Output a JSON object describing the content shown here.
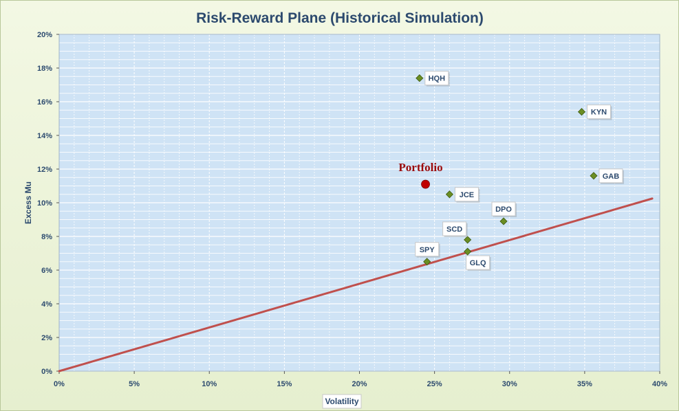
{
  "chart_data": {
    "type": "scatter",
    "title": "Risk-Reward Plane (Historical Simulation)",
    "xlabel": "Volatility",
    "ylabel": "Excess Mu",
    "xlim": [
      0,
      0.4
    ],
    "ylim": [
      0,
      0.2
    ],
    "x_ticks": [
      "0%",
      "5%",
      "10%",
      "15%",
      "20%",
      "25%",
      "30%",
      "35%",
      "40%"
    ],
    "y_ticks": [
      "0%",
      "2%",
      "4%",
      "6%",
      "8%",
      "10%",
      "12%",
      "14%",
      "16%",
      "18%",
      "20%"
    ],
    "grid": true,
    "points": [
      {
        "label": "HQH",
        "x": 0.24,
        "y": 0.174,
        "label_pos": "right"
      },
      {
        "label": "KYN",
        "x": 0.348,
        "y": 0.154,
        "label_pos": "right"
      },
      {
        "label": "GAB",
        "x": 0.356,
        "y": 0.116,
        "label_pos": "right"
      },
      {
        "label": "JCE",
        "x": 0.26,
        "y": 0.105,
        "label_pos": "right"
      },
      {
        "label": "DPO",
        "x": 0.296,
        "y": 0.089,
        "label_pos": "above"
      },
      {
        "label": "SCD",
        "x": 0.272,
        "y": 0.078,
        "label_pos": "above-left"
      },
      {
        "label": "GLQ",
        "x": 0.272,
        "y": 0.071,
        "label_pos": "below-right"
      },
      {
        "label": "SPY",
        "x": 0.245,
        "y": 0.065,
        "label_pos": "above"
      }
    ],
    "portfolio": {
      "label": "Portfolio",
      "x": 0.244,
      "y": 0.111
    },
    "line": {
      "x": [
        0,
        0.395
      ],
      "y": [
        0,
        0.1025
      ]
    },
    "colors": {
      "plot_bg": "#cfe3f5",
      "grid": "#ffffff",
      "points": "#6b8e23",
      "portfolio": "#c00000",
      "line": "#c0504d",
      "text": "#2c4a6e"
    }
  }
}
